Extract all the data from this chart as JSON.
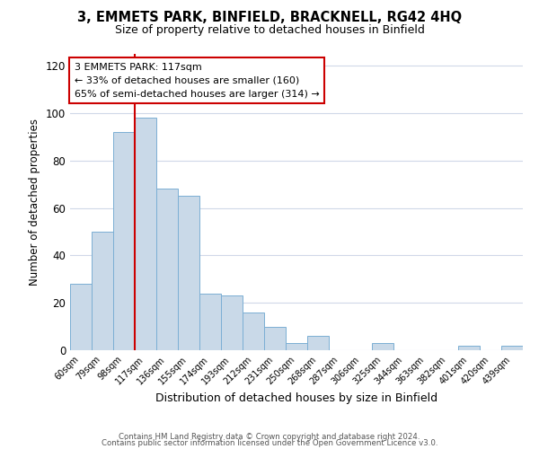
{
  "title": "3, EMMETS PARK, BINFIELD, BRACKNELL, RG42 4HQ",
  "subtitle": "Size of property relative to detached houses in Binfield",
  "xlabel": "Distribution of detached houses by size in Binfield",
  "ylabel": "Number of detached properties",
  "bar_labels": [
    "60sqm",
    "79sqm",
    "98sqm",
    "117sqm",
    "136sqm",
    "155sqm",
    "174sqm",
    "193sqm",
    "212sqm",
    "231sqm",
    "250sqm",
    "268sqm",
    "287sqm",
    "306sqm",
    "325sqm",
    "344sqm",
    "363sqm",
    "382sqm",
    "401sqm",
    "420sqm",
    "439sqm"
  ],
  "bar_heights": [
    28,
    50,
    92,
    98,
    68,
    65,
    24,
    23,
    16,
    10,
    3,
    6,
    0,
    0,
    3,
    0,
    0,
    0,
    2,
    0,
    2
  ],
  "bar_color": "#c9d9e8",
  "bar_edge_color": "#7bafd4",
  "vline_color": "#cc0000",
  "vline_bar_index": 3,
  "annotation_text": "3 EMMETS PARK: 117sqm\n← 33% of detached houses are smaller (160)\n65% of semi-detached houses are larger (314) →",
  "annotation_box_color": "#ffffff",
  "annotation_box_edge": "#cc0000",
  "ylim": [
    0,
    125
  ],
  "yticks": [
    0,
    20,
    40,
    60,
    80,
    100,
    120
  ],
  "footer1": "Contains HM Land Registry data © Crown copyright and database right 2024.",
  "footer2": "Contains public sector information licensed under the Open Government Licence v3.0.",
  "background_color": "#ffffff",
  "grid_color": "#d0d8e8"
}
